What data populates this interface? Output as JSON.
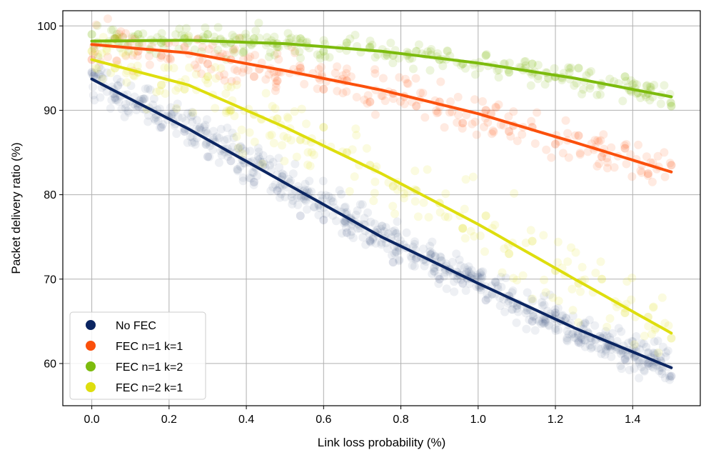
{
  "chart_data": {
    "type": "scatter",
    "xlabel": "Link loss probability (%)",
    "ylabel": "Packet delivery ratio (%)",
    "xlim": [
      -0.075,
      1.575
    ],
    "ylim": [
      55,
      101.8
    ],
    "xticks": [
      0.0,
      0.2,
      0.4,
      0.6,
      0.8,
      1.0,
      1.2,
      1.4
    ],
    "xtick_labels": [
      "0.0",
      "0.2",
      "0.4",
      "0.6",
      "0.8",
      "1.0",
      "1.2",
      "1.4"
    ],
    "yticks": [
      60,
      70,
      80,
      90,
      100
    ],
    "ytick_labels": [
      "60",
      "70",
      "80",
      "90",
      "100"
    ],
    "grid": true,
    "legend_position": "bottom-left",
    "series": [
      {
        "name": "No FEC",
        "color": "#0b2561",
        "trend": {
          "x": [
            0.0,
            0.25,
            0.5,
            0.75,
            1.0,
            1.25,
            1.5
          ],
          "y": [
            93.7,
            87.8,
            81.4,
            75.0,
            69.5,
            64.2,
            59.5
          ]
        },
        "scatter": {
          "x": [
            0.0,
            0.06,
            0.12,
            0.18,
            0.24,
            0.3,
            0.36,
            0.42,
            0.48,
            0.54,
            0.6,
            0.66,
            0.72,
            0.78,
            0.84,
            0.9,
            0.96,
            1.02,
            1.08,
            1.14,
            1.2,
            1.26,
            1.32,
            1.38,
            1.44,
            1.5
          ],
          "y": [
            94.5,
            91.5,
            90.5,
            88.0,
            87.5,
            84.5,
            84.0,
            81.5,
            80.5,
            77.5,
            77.0,
            75.5,
            74.5,
            72.0,
            72.5,
            70.0,
            69.5,
            67.5,
            68.0,
            65.0,
            66.0,
            62.5,
            63.0,
            60.5,
            60.0,
            58.5
          ]
        }
      },
      {
        "name": "FEC n=1 k=1",
        "color": "#fb500c",
        "trend": {
          "x": [
            0.0,
            0.25,
            0.5,
            0.75,
            1.0,
            1.25,
            1.5
          ],
          "y": [
            97.8,
            96.8,
            94.7,
            92.4,
            89.6,
            86.2,
            82.7
          ]
        },
        "scatter": {
          "x": [
            0.0,
            0.06,
            0.12,
            0.18,
            0.24,
            0.3,
            0.36,
            0.42,
            0.48,
            0.54,
            0.6,
            0.66,
            0.72,
            0.78,
            0.84,
            0.9,
            0.96,
            1.02,
            1.08,
            1.14,
            1.2,
            1.26,
            1.32,
            1.38,
            1.44,
            1.5
          ],
          "y": [
            96.0,
            98.5,
            97.0,
            96.5,
            97.5,
            95.5,
            96.0,
            94.0,
            93.5,
            95.0,
            92.5,
            93.5,
            91.0,
            92.0,
            90.5,
            91.0,
            88.5,
            90.0,
            87.5,
            88.0,
            86.0,
            87.0,
            84.5,
            85.5,
            82.5,
            83.5
          ]
        }
      },
      {
        "name": "FEC n=1 k=2",
        "color": "#7cbb0d",
        "trend": {
          "x": [
            0.0,
            0.25,
            0.5,
            0.75,
            1.0,
            1.25,
            1.5
          ],
          "y": [
            98.2,
            98.3,
            97.9,
            97.0,
            95.6,
            93.8,
            91.6
          ]
        },
        "scatter": {
          "x": [
            0.0,
            0.06,
            0.12,
            0.18,
            0.24,
            0.3,
            0.36,
            0.42,
            0.48,
            0.54,
            0.6,
            0.66,
            0.72,
            0.78,
            0.84,
            0.9,
            0.96,
            1.02,
            1.08,
            1.14,
            1.2,
            1.26,
            1.32,
            1.38,
            1.44,
            1.5
          ],
          "y": [
            99.0,
            98.5,
            99.0,
            98.0,
            98.5,
            99.0,
            98.0,
            98.5,
            97.5,
            98.5,
            97.0,
            98.0,
            97.5,
            96.5,
            97.0,
            96.0,
            95.5,
            96.5,
            94.5,
            95.5,
            94.0,
            95.0,
            93.0,
            94.0,
            92.0,
            90.5
          ]
        }
      },
      {
        "name": "FEC n=2 k=1",
        "color": "#dede0e",
        "trend": {
          "x": [
            0.0,
            0.25,
            0.5,
            0.75,
            1.0,
            1.25,
            1.5
          ],
          "y": [
            96.0,
            93.0,
            88.0,
            82.5,
            76.5,
            70.0,
            63.6
          ]
        },
        "scatter": {
          "x": [
            0.0,
            0.06,
            0.12,
            0.18,
            0.24,
            0.3,
            0.36,
            0.42,
            0.48,
            0.54,
            0.6,
            0.66,
            0.72,
            0.78,
            0.84,
            0.9,
            0.96,
            1.02,
            1.08,
            1.14,
            1.2,
            1.26,
            1.32,
            1.38,
            1.44,
            1.5
          ],
          "y": [
            97.0,
            95.0,
            94.5,
            93.0,
            92.5,
            94.0,
            90.0,
            89.5,
            89.0,
            86.5,
            88.0,
            85.0,
            83.5,
            81.0,
            80.5,
            79.0,
            76.0,
            77.5,
            73.0,
            74.5,
            71.0,
            69.5,
            70.0,
            66.0,
            65.5,
            63.0
          ]
        }
      }
    ]
  }
}
